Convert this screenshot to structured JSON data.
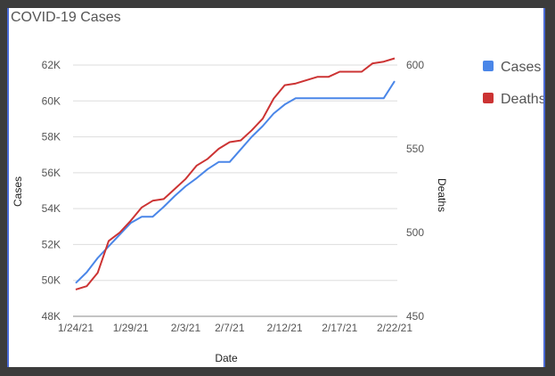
{
  "chart_data": {
    "type": "line",
    "title": "COVID-19 Cases",
    "xlabel": "Date",
    "ylabel": "Cases",
    "y2label": "Deaths",
    "x_ticks": [
      "1/24/21",
      "1/29/21",
      "2/3/21",
      "2/7/21",
      "2/12/21",
      "2/17/21",
      "2/22/21"
    ],
    "x_tick_day_index": [
      0,
      5,
      10,
      14,
      19,
      24,
      29
    ],
    "ylim": [
      48000,
      62000
    ],
    "y_ticks": [
      48000,
      50000,
      52000,
      54000,
      56000,
      58000,
      60000,
      62000
    ],
    "y_tick_labels": [
      "48K",
      "50K",
      "52K",
      "54K",
      "56K",
      "58K",
      "60K",
      "62K"
    ],
    "y2lim": [
      450,
      600
    ],
    "y2_ticks": [
      450,
      500,
      550,
      600
    ],
    "y2_tick_labels": [
      "450",
      "500",
      "550",
      "600"
    ],
    "grid": true,
    "legend_position": "right",
    "colors": {
      "cases": "#4a86e8",
      "deaths": "#cc3333"
    },
    "series": [
      {
        "name": "Cases",
        "axis": "left",
        "values": [
          49850,
          50450,
          51250,
          51900,
          52550,
          53200,
          53550,
          53550,
          54100,
          54700,
          55250,
          55700,
          56200,
          56600,
          56600,
          57300,
          58000,
          58600,
          59300,
          59800,
          60150,
          60150,
          60150,
          60150,
          60150,
          60150,
          60150,
          60150,
          60150,
          61100
        ]
      },
      {
        "name": "Deaths",
        "axis": "right",
        "values": [
          466,
          468,
          476,
          495,
          500,
          507,
          515,
          519,
          520,
          526,
          532,
          540,
          544,
          550,
          554,
          555,
          561,
          568,
          580,
          588,
          589,
          591,
          593,
          593,
          596,
          596,
          596,
          601,
          602,
          604
        ]
      }
    ]
  }
}
